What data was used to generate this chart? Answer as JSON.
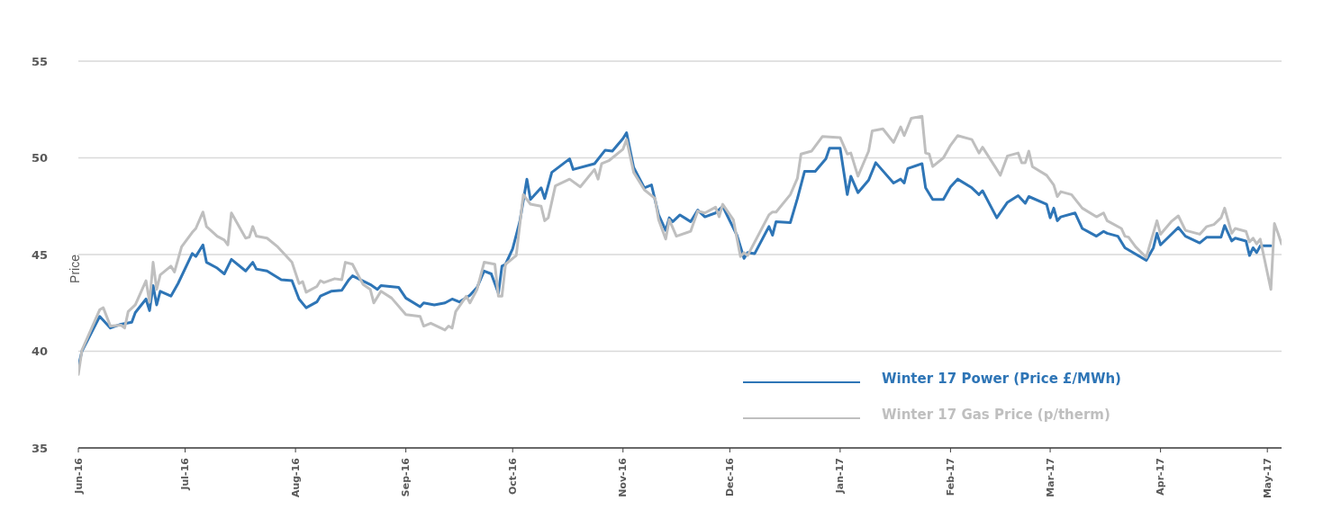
{
  "chart_data": {
    "type": "line",
    "ylabel": "Price",
    "xlim": [
      "2016-06-01",
      "2017-05-05"
    ],
    "ylim": [
      35,
      55
    ],
    "yticks": [
      35,
      40,
      45,
      50,
      55
    ],
    "xticks": [
      {
        "value": "2016-06-01",
        "label": "Jun-16"
      },
      {
        "value": "2016-07-01",
        "label": "Jul-16"
      },
      {
        "value": "2016-08-01",
        "label": "Aug-16"
      },
      {
        "value": "2016-09-01",
        "label": "Sep-16"
      },
      {
        "value": "2016-10-01",
        "label": "Oct-16"
      },
      {
        "value": "2016-11-01",
        "label": "Nov-16"
      },
      {
        "value": "2016-12-01",
        "label": "Dec-16"
      },
      {
        "value": "2017-01-01",
        "label": "Jan-17"
      },
      {
        "value": "2017-02-01",
        "label": "Feb-17"
      },
      {
        "value": "2017-03-01",
        "label": "Mar-17"
      },
      {
        "value": "2017-04-01",
        "label": "Apr-17"
      },
      {
        "value": "2017-05-01",
        "label": "May-17"
      }
    ],
    "grid": "y",
    "legend": "bottom right",
    "marker": "none",
    "line_style": "solid",
    "series": [
      {
        "name": "Winter 17 Power (Price £/MWh)",
        "color": "#2e75b6",
        "x": [
          "2016-06-01",
          "2016-06-02",
          "2016-06-07",
          "2016-06-10",
          "2016-06-13",
          "2016-06-16",
          "2016-06-17",
          "2016-06-20",
          "2016-06-21",
          "2016-06-22",
          "2016-06-23",
          "2016-06-24",
          "2016-06-27",
          "2016-06-29",
          "2016-07-03",
          "2016-07-04",
          "2016-07-06",
          "2016-07-07",
          "2016-07-10",
          "2016-07-12",
          "2016-07-14",
          "2016-07-18",
          "2016-07-20",
          "2016-07-21",
          "2016-07-24",
          "2016-07-28",
          "2016-07-31",
          "2016-08-02",
          "2016-08-04",
          "2016-08-07",
          "2016-08-08",
          "2016-08-11",
          "2016-08-14",
          "2016-08-16",
          "2016-08-17",
          "2016-08-22",
          "2016-08-24",
          "2016-08-25",
          "2016-08-30",
          "2016-09-01",
          "2016-09-05",
          "2016-09-06",
          "2016-09-09",
          "2016-09-12",
          "2016-09-14",
          "2016-09-16",
          "2016-09-19",
          "2016-09-21",
          "2016-09-23",
          "2016-09-25",
          "2016-09-27",
          "2016-09-28",
          "2016-09-29",
          "2016-10-01",
          "2016-10-03",
          "2016-10-05",
          "2016-10-06",
          "2016-10-09",
          "2016-10-10",
          "2016-10-12",
          "2016-10-17",
          "2016-10-18",
          "2016-10-24",
          "2016-10-27",
          "2016-10-29",
          "2016-11-01",
          "2016-11-02",
          "2016-11-04",
          "2016-11-07",
          "2016-11-09",
          "2016-11-11",
          "2016-11-13",
          "2016-11-14",
          "2016-11-15",
          "2016-11-17",
          "2016-11-20",
          "2016-11-22",
          "2016-11-24",
          "2016-11-27",
          "2016-11-29",
          "2016-12-03",
          "2016-12-05",
          "2016-12-06",
          "2016-12-08",
          "2016-12-12",
          "2016-12-13",
          "2016-12-14",
          "2016-12-18",
          "2016-12-20",
          "2016-12-22",
          "2016-12-25",
          "2016-12-28",
          "2016-12-29",
          "2017-01-01",
          "2017-01-03",
          "2017-01-04",
          "2017-01-06",
          "2017-01-09",
          "2017-01-11",
          "2017-01-16",
          "2017-01-18",
          "2017-01-19",
          "2017-01-20",
          "2017-01-24",
          "2017-01-25",
          "2017-01-27",
          "2017-01-30",
          "2017-02-01",
          "2017-02-03",
          "2017-02-07",
          "2017-02-09",
          "2017-02-10",
          "2017-02-14",
          "2017-02-17",
          "2017-02-20",
          "2017-02-22",
          "2017-02-23",
          "2017-02-28",
          "2017-03-01",
          "2017-03-02",
          "2017-03-03",
          "2017-03-04",
          "2017-03-08",
          "2017-03-10",
          "2017-03-14",
          "2017-03-16",
          "2017-03-17",
          "2017-03-20",
          "2017-03-22",
          "2017-03-28",
          "2017-03-30",
          "2017-03-31",
          "2017-04-01",
          "2017-04-06",
          "2017-04-08",
          "2017-04-12",
          "2017-04-14",
          "2017-04-18",
          "2017-04-19",
          "2017-04-21",
          "2017-04-22",
          "2017-04-25",
          "2017-04-26",
          "2017-04-27",
          "2017-04-28",
          "2017-04-29",
          "2017-05-02"
        ],
        "values": [
          39.2,
          40.0,
          41.8,
          41.2,
          41.4,
          41.5,
          42.0,
          42.7,
          42.1,
          43.4,
          42.4,
          43.1,
          42.85,
          43.5,
          45.05,
          44.9,
          45.5,
          44.6,
          44.3,
          44.0,
          44.75,
          44.15,
          44.6,
          44.25,
          44.15,
          43.7,
          43.65,
          42.7,
          42.25,
          42.55,
          42.85,
          43.1,
          43.15,
          43.7,
          43.9,
          43.45,
          43.2,
          43.4,
          43.3,
          42.75,
          42.3,
          42.5,
          42.4,
          42.5,
          42.7,
          42.55,
          42.9,
          43.3,
          44.15,
          44.0,
          43.0,
          44.4,
          44.5,
          45.3,
          46.7,
          48.9,
          47.85,
          48.45,
          47.9,
          49.25,
          49.95,
          49.4,
          49.7,
          50.4,
          50.35,
          51.0,
          51.3,
          49.5,
          48.45,
          48.6,
          47.05,
          46.25,
          46.9,
          46.7,
          47.05,
          46.7,
          47.3,
          46.95,
          47.15,
          47.5,
          46.0,
          44.8,
          45.1,
          45.05,
          46.45,
          46.0,
          46.7,
          46.65,
          47.9,
          49.3,
          49.3,
          49.95,
          50.5,
          50.5,
          48.1,
          49.05,
          48.2,
          48.85,
          49.75,
          48.7,
          48.9,
          48.7,
          49.45,
          49.7,
          48.45,
          47.85,
          47.85,
          48.5,
          48.9,
          48.45,
          48.1,
          48.3,
          46.9,
          47.7,
          48.05,
          47.65,
          48.0,
          47.6,
          46.9,
          47.4,
          46.75,
          46.95,
          47.15,
          46.35,
          45.95,
          46.2,
          46.1,
          45.95,
          45.35,
          44.7,
          45.35,
          46.1,
          45.5,
          46.4,
          45.95,
          45.6,
          45.9,
          45.9,
          46.5,
          45.7,
          45.85,
          45.7,
          44.95,
          45.35,
          45.1,
          45.45,
          45.45
        ]
      },
      {
        "name": "Winter 17 Gas Price (p/therm)",
        "color": "#bfbfbf",
        "x": [
          "2016-06-01",
          "2016-06-02",
          "2016-06-07",
          "2016-06-08",
          "2016-06-10",
          "2016-06-13",
          "2016-06-14",
          "2016-06-15",
          "2016-06-17",
          "2016-06-20",
          "2016-06-21",
          "2016-06-22",
          "2016-06-23",
          "2016-06-24",
          "2016-06-27",
          "2016-06-28",
          "2016-06-30",
          "2016-07-03",
          "2016-07-04",
          "2016-07-06",
          "2016-07-07",
          "2016-07-10",
          "2016-07-12",
          "2016-07-13",
          "2016-07-14",
          "2016-07-18",
          "2016-07-19",
          "2016-07-20",
          "2016-07-21",
          "2016-07-24",
          "2016-07-27",
          "2016-07-31",
          "2016-08-02",
          "2016-08-03",
          "2016-08-04",
          "2016-08-07",
          "2016-08-08",
          "2016-08-09",
          "2016-08-12",
          "2016-08-14",
          "2016-08-15",
          "2016-08-17",
          "2016-08-20",
          "2016-08-22",
          "2016-08-23",
          "2016-08-25",
          "2016-08-28",
          "2016-09-01",
          "2016-09-05",
          "2016-09-06",
          "2016-09-08",
          "2016-09-12",
          "2016-09-13",
          "2016-09-14",
          "2016-09-15",
          "2016-09-18",
          "2016-09-19",
          "2016-09-21",
          "2016-09-23",
          "2016-09-26",
          "2016-09-27",
          "2016-09-28",
          "2016-09-29",
          "2016-10-02",
          "2016-10-04",
          "2016-10-06",
          "2016-10-09",
          "2016-10-10",
          "2016-10-11",
          "2016-10-13",
          "2016-10-17",
          "2016-10-20",
          "2016-10-24",
          "2016-10-25",
          "2016-10-26",
          "2016-10-28",
          "2016-11-01",
          "2016-11-02",
          "2016-11-04",
          "2016-11-07",
          "2016-11-10",
          "2016-11-11",
          "2016-11-13",
          "2016-11-14",
          "2016-11-16",
          "2016-11-20",
          "2016-11-22",
          "2016-11-24",
          "2016-11-27",
          "2016-11-28",
          "2016-11-29",
          "2016-12-02",
          "2016-12-04",
          "2016-12-05",
          "2016-12-06",
          "2016-12-12",
          "2016-12-13",
          "2016-12-14",
          "2016-12-18",
          "2016-12-20",
          "2016-12-21",
          "2016-12-24",
          "2016-12-27",
          "2017-01-01",
          "2017-01-03",
          "2017-01-04",
          "2017-01-06",
          "2017-01-09",
          "2017-01-10",
          "2017-01-13",
          "2017-01-16",
          "2017-01-18",
          "2017-01-19",
          "2017-01-21",
          "2017-01-24",
          "2017-01-25",
          "2017-01-26",
          "2017-01-27",
          "2017-01-30",
          "2017-02-01",
          "2017-02-03",
          "2017-02-07",
          "2017-02-09",
          "2017-02-10",
          "2017-02-14",
          "2017-02-15",
          "2017-02-17",
          "2017-02-20",
          "2017-02-21",
          "2017-02-22",
          "2017-02-23",
          "2017-02-24",
          "2017-02-28",
          "2017-03-02",
          "2017-03-03",
          "2017-03-04",
          "2017-03-07",
          "2017-03-10",
          "2017-03-14",
          "2017-03-16",
          "2017-03-17",
          "2017-03-21",
          "2017-03-22",
          "2017-03-23",
          "2017-03-25",
          "2017-03-28",
          "2017-03-29",
          "2017-03-31",
          "2017-04-01",
          "2017-04-04",
          "2017-04-06",
          "2017-04-08",
          "2017-04-12",
          "2017-04-14",
          "2017-04-16",
          "2017-04-18",
          "2017-04-19",
          "2017-04-21",
          "2017-04-22",
          "2017-04-25",
          "2017-04-26",
          "2017-04-27",
          "2017-04-28",
          "2017-04-29",
          "2017-05-02",
          "2017-05-03",
          "2017-05-04",
          "2017-05-05"
        ],
        "values": [
          38.8,
          40.05,
          42.15,
          42.25,
          41.3,
          41.35,
          41.2,
          42.05,
          42.4,
          43.65,
          42.55,
          44.6,
          43.2,
          43.95,
          44.4,
          44.1,
          45.4,
          46.15,
          46.35,
          47.2,
          46.45,
          45.95,
          45.75,
          45.5,
          47.15,
          45.85,
          45.9,
          46.45,
          45.95,
          45.85,
          45.4,
          44.6,
          43.5,
          43.6,
          43.05,
          43.35,
          43.65,
          43.55,
          43.75,
          43.7,
          44.6,
          44.5,
          43.45,
          43.2,
          42.5,
          43.1,
          42.75,
          41.9,
          41.8,
          41.3,
          41.45,
          41.1,
          41.3,
          41.2,
          42.05,
          42.85,
          42.5,
          43.2,
          44.6,
          44.5,
          42.85,
          42.85,
          44.5,
          44.95,
          48.1,
          47.6,
          47.5,
          46.75,
          46.9,
          48.55,
          48.9,
          48.5,
          49.4,
          48.9,
          49.7,
          49.85,
          50.45,
          50.95,
          49.25,
          48.35,
          47.9,
          46.8,
          45.8,
          46.8,
          45.95,
          46.2,
          47.25,
          47.15,
          47.45,
          46.95,
          47.6,
          46.8,
          44.9,
          45.1,
          44.95,
          47.05,
          47.2,
          47.2,
          48.1,
          48.95,
          50.2,
          50.35,
          51.1,
          51.05,
          50.2,
          50.25,
          49.05,
          50.35,
          51.4,
          51.5,
          50.8,
          51.6,
          51.15,
          52.05,
          52.15,
          50.25,
          50.2,
          49.55,
          50.0,
          50.65,
          51.15,
          50.95,
          50.25,
          50.55,
          49.4,
          49.1,
          50.1,
          50.25,
          49.75,
          49.75,
          50.35,
          49.55,
          49.1,
          48.6,
          48.0,
          48.25,
          48.1,
          47.4,
          46.95,
          47.15,
          46.75,
          46.35,
          45.95,
          45.9,
          45.4,
          44.85,
          45.5,
          46.75,
          46.05,
          46.7,
          47.0,
          46.25,
          46.05,
          46.45,
          46.55,
          46.9,
          47.4,
          46.1,
          46.35,
          46.2,
          45.65,
          45.85,
          45.55,
          45.8,
          43.2,
          46.6,
          46.1,
          45.55
        ]
      }
    ]
  }
}
